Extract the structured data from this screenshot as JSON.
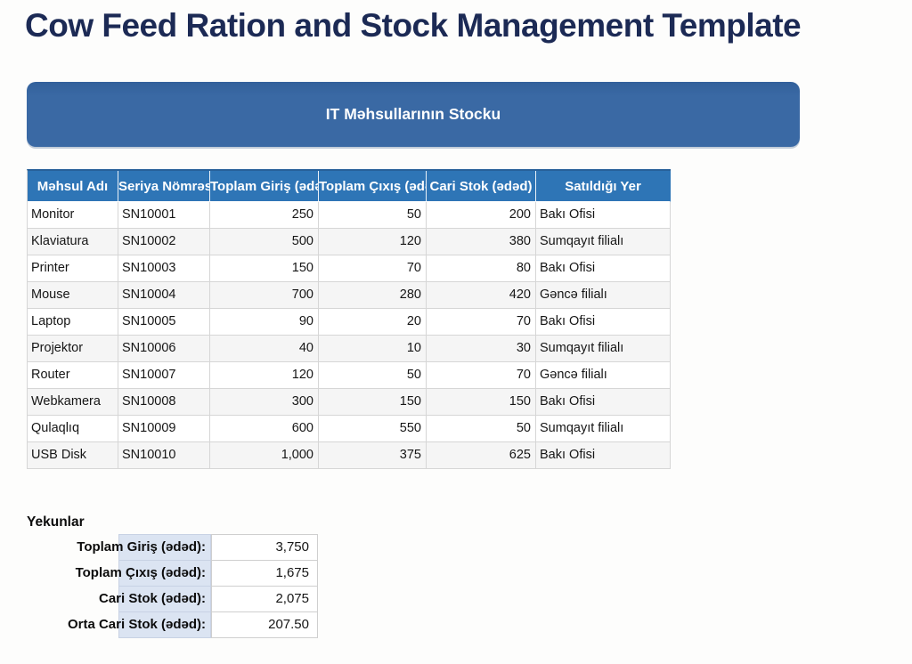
{
  "page": {
    "title": "Cow Feed Ration and Stock Management Template"
  },
  "banner": {
    "title": "IT Məhsullarının Stocku"
  },
  "stock_table": {
    "columns": [
      {
        "label": "Məhsul Adı",
        "align": "left"
      },
      {
        "label": "Seriya Nömrəsi",
        "align": "left"
      },
      {
        "label": "Toplam Giriş (ədəd)",
        "align": "right"
      },
      {
        "label": "Toplam Çıxış (ədəd)",
        "align": "right"
      },
      {
        "label": "Cari Stok (ədəd)",
        "align": "right"
      },
      {
        "label": "Satıldığı Yer",
        "align": "left"
      }
    ],
    "rows": [
      [
        "Monitor",
        "SN10001",
        "250",
        "50",
        "200",
        "Bakı Ofisi"
      ],
      [
        "Klaviatura",
        "SN10002",
        "500",
        "120",
        "380",
        "Sumqayıt filialı"
      ],
      [
        "Printer",
        "SN10003",
        "150",
        "70",
        "80",
        "Bakı Ofisi"
      ],
      [
        "Mouse",
        "SN10004",
        "700",
        "280",
        "420",
        "Gəncə filialı"
      ],
      [
        "Laptop",
        "SN10005",
        "90",
        "20",
        "70",
        "Bakı Ofisi"
      ],
      [
        "Projektor",
        "SN10006",
        "40",
        "10",
        "30",
        "Sumqayıt filialı"
      ],
      [
        "Router",
        "SN10007",
        "120",
        "50",
        "70",
        "Gəncə filialı"
      ],
      [
        "Webkamera",
        "SN10008",
        "300",
        "150",
        "150",
        "Bakı Ofisi"
      ],
      [
        "Qulaqlıq",
        "SN10009",
        "600",
        "550",
        "50",
        "Sumqayıt filialı"
      ],
      [
        "USB Disk",
        "SN10010",
        "1,000",
        "375",
        "625",
        "Bakı Ofisi"
      ]
    ]
  },
  "summary": {
    "heading": "Yekunlar",
    "rows": [
      {
        "label": "Toplam Giriş (ədəd):",
        "value": "3,750"
      },
      {
        "label": "Toplam Çıxış (ədəd):",
        "value": "1,675"
      },
      {
        "label": "Cari Stok (ədəd):",
        "value": "2,075"
      },
      {
        "label": "Orta Cari Stok (ədəd):",
        "value": "207.50"
      }
    ]
  },
  "colors": {
    "title_text": "#1c2a55",
    "banner_bg": "#3a69a4",
    "banner_text": "#ffffff",
    "table_header_bg": "#2e75b6",
    "table_header_text": "#ffffff",
    "row_stripe": "#f5f5f5",
    "grid_border": "#d6d6d6",
    "summary_label_fill": "#dbe4f2",
    "body_text": "#161616"
  }
}
